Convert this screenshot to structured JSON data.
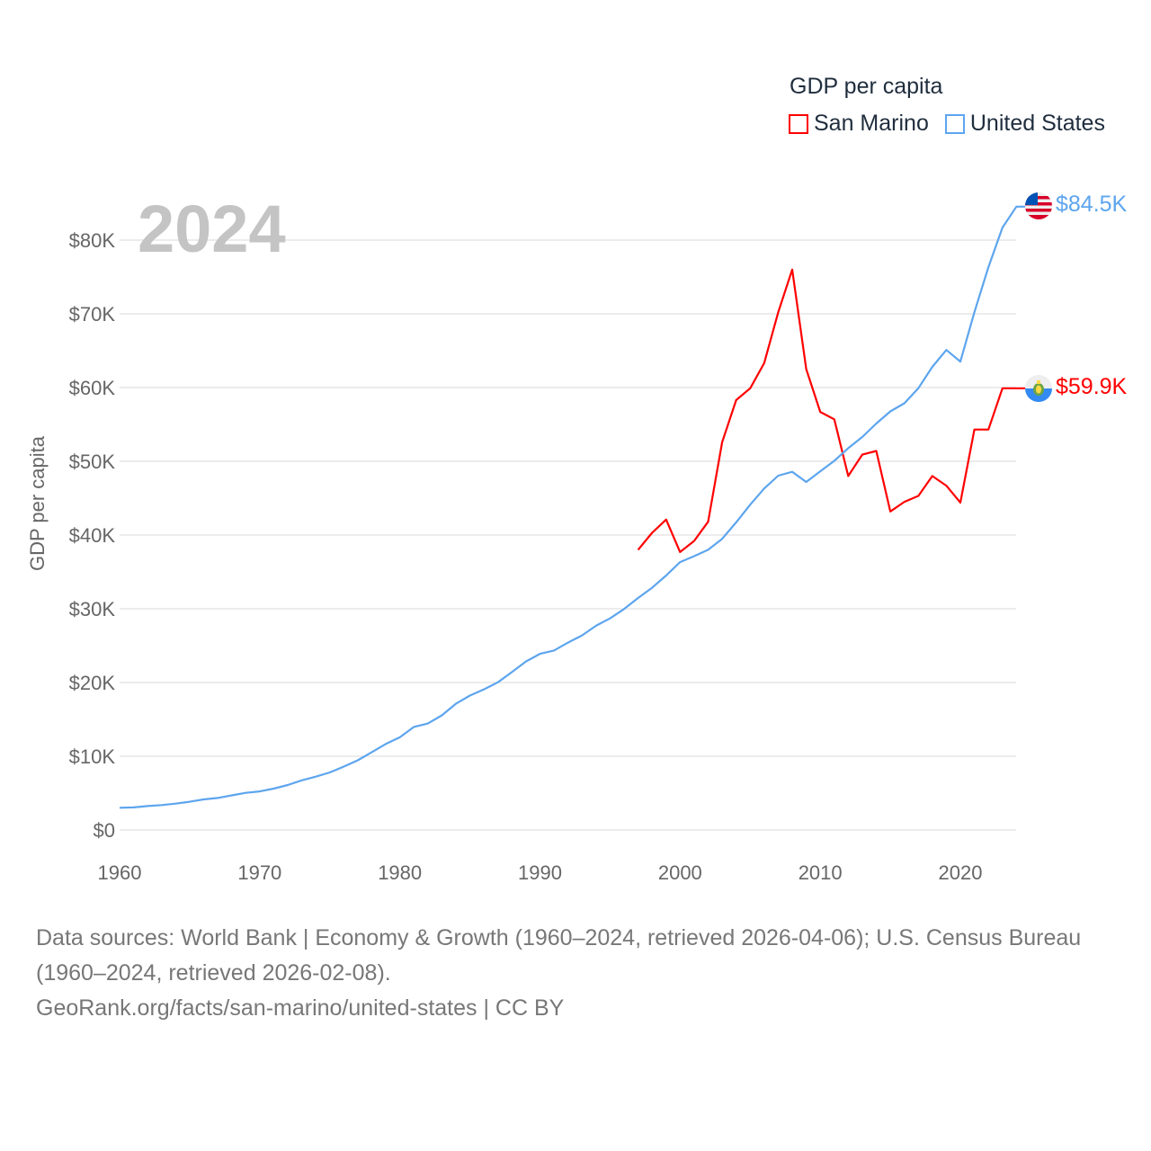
{
  "chart_data": {
    "type": "line",
    "title": "GDP per capita",
    "ylabel": "GDP per capita",
    "xlabel": "",
    "current_year": "2024",
    "xlim": [
      1960,
      2024
    ],
    "ylim": [
      0,
      80000
    ],
    "x_ticks": [
      "1960",
      "1970",
      "1980",
      "1990",
      "2000",
      "2010",
      "2020"
    ],
    "y_ticks": [
      {
        "value": 0,
        "label": "$0"
      },
      {
        "value": 10000,
        "label": "$10K"
      },
      {
        "value": 20000,
        "label": "$20K"
      },
      {
        "value": 30000,
        "label": "$30K"
      },
      {
        "value": 40000,
        "label": "$40K"
      },
      {
        "value": 50000,
        "label": "$50K"
      },
      {
        "value": 60000,
        "label": "$60K"
      },
      {
        "value": 70000,
        "label": "$70K"
      },
      {
        "value": 80000,
        "label": "$80K"
      }
    ],
    "grid": true,
    "legend_position": "top-right",
    "series": [
      {
        "name": "San Marino",
        "color": "#ff0000",
        "end_label": "$59.9K",
        "flag": "san-marino-flag",
        "x": [
          1997,
          1998,
          1999,
          2000,
          2001,
          2002,
          2003,
          2004,
          2005,
          2006,
          2007,
          2008,
          2009,
          2010,
          2011,
          2012,
          2013,
          2014,
          2015,
          2016,
          2017,
          2018,
          2019,
          2020,
          2021,
          2022,
          2023,
          2024
        ],
        "values": [
          38000,
          40300,
          42100,
          37700,
          39200,
          41800,
          52600,
          58300,
          59900,
          63300,
          70200,
          76000,
          62500,
          56700,
          55700,
          48000,
          50900,
          51400,
          43200,
          44500,
          45300,
          48000,
          46700,
          44400,
          54300,
          54300,
          59900,
          59900
        ]
      },
      {
        "name": "United States",
        "color": "#5da5ee",
        "end_label": "$84.5K",
        "flag": "united-states-flag",
        "x": [
          1960,
          1961,
          1962,
          1963,
          1964,
          1965,
          1966,
          1967,
          1968,
          1969,
          1970,
          1971,
          1972,
          1973,
          1974,
          1975,
          1976,
          1977,
          1978,
          1979,
          1980,
          1981,
          1982,
          1983,
          1984,
          1985,
          1986,
          1987,
          1988,
          1989,
          1990,
          1991,
          1992,
          1993,
          1994,
          1995,
          1996,
          1997,
          1998,
          1999,
          2000,
          2001,
          2002,
          2003,
          2004,
          2005,
          2006,
          2007,
          2008,
          2009,
          2010,
          2011,
          2012,
          2013,
          2014,
          2015,
          2016,
          2017,
          2018,
          2019,
          2020,
          2021,
          2022,
          2023,
          2024
        ],
        "values": [
          3007,
          3067,
          3244,
          3375,
          3574,
          3828,
          4146,
          4336,
          4696,
          5032,
          5234,
          5609,
          6094,
          6726,
          7226,
          7801,
          8592,
          9453,
          10565,
          11674,
          12575,
          13976,
          14434,
          15544,
          17121,
          18237,
          19071,
          20039,
          21417,
          22857,
          23889,
          24342,
          25419,
          26387,
          27695,
          28691,
          29968,
          31459,
          32854,
          34515,
          36330,
          37134,
          37998,
          39490,
          41725,
          44123,
          46302,
          48050,
          48570,
          47195,
          48651,
          50066,
          51784,
          53291,
          55124,
          56763,
          57867,
          59915,
          62805,
          65095,
          63528,
          70219,
          76330,
          81695,
          84534
        ]
      }
    ]
  },
  "footer": {
    "sources": "Data sources: World Bank | Economy & Growth (1960–2024, retrieved 2026-04-06); U.S. Census Bureau (1960–2024, retrieved 2026-02-08).",
    "credit": "GeoRank.org/facts/san-marino/united-states | CC BY"
  }
}
